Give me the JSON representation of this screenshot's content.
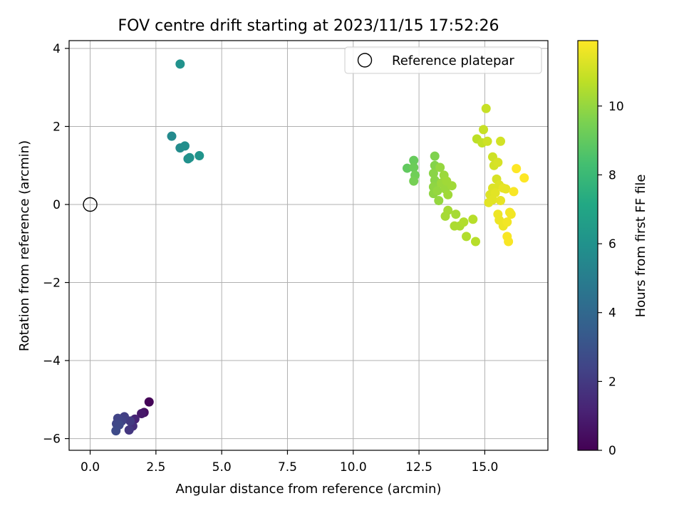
{
  "chart_data": {
    "type": "scatter",
    "title": "FOV centre drift starting at 2023/11/15 17:52:26",
    "xlabel": "Angular distance from reference (arcmin)",
    "ylabel": "Rotation from reference (arcmin)",
    "colorbar_label": "Hours from first FF file",
    "colormap": "viridis",
    "xlim": [
      -0.8,
      17.4
    ],
    "ylim": [
      -6.3,
      4.2
    ],
    "clim": [
      0,
      11.9
    ],
    "xticks": [
      0.0,
      2.5,
      5.0,
      7.5,
      10.0,
      12.5,
      15.0
    ],
    "xtick_labels": [
      "0.0",
      "2.5",
      "5.0",
      "7.5",
      "10.0",
      "12.5",
      "15.0"
    ],
    "yticks": [
      -6,
      -4,
      -2,
      0,
      2,
      4
    ],
    "ytick_labels": [
      "−6",
      "−4",
      "−2",
      "0",
      "2",
      "4"
    ],
    "cbar_ticks": [
      0,
      2,
      4,
      6,
      8,
      10
    ],
    "cbar_tick_labels": [
      "0",
      "2",
      "4",
      "6",
      "8",
      "10"
    ],
    "grid": true,
    "legend": {
      "position": "top-right",
      "entries": [
        "Reference platepar"
      ]
    },
    "reference_point": {
      "x": 0.0,
      "y": 0.0
    },
    "points": [
      {
        "x": 2.24,
        "y": -5.06,
        "h": 0.1
      },
      {
        "x": 2.05,
        "y": -5.33,
        "h": 0.5
      },
      {
        "x": 1.95,
        "y": -5.36,
        "h": 0.8
      },
      {
        "x": 1.7,
        "y": -5.5,
        "h": 1.2
      },
      {
        "x": 1.62,
        "y": -5.68,
        "h": 1.6
      },
      {
        "x": 1.48,
        "y": -5.78,
        "h": 1.9
      },
      {
        "x": 1.52,
        "y": -5.55,
        "h": 2.0
      },
      {
        "x": 1.3,
        "y": -5.44,
        "h": 2.2
      },
      {
        "x": 1.2,
        "y": -5.55,
        "h": 2.3
      },
      {
        "x": 1.05,
        "y": -5.48,
        "h": 2.4
      },
      {
        "x": 1.0,
        "y": -5.62,
        "h": 2.5
      },
      {
        "x": 1.1,
        "y": -5.65,
        "h": 2.6
      },
      {
        "x": 0.98,
        "y": -5.8,
        "h": 2.7
      },
      {
        "x": 3.1,
        "y": 1.75,
        "h": 5.6
      },
      {
        "x": 3.42,
        "y": 1.45,
        "h": 5.7
      },
      {
        "x": 3.6,
        "y": 1.5,
        "h": 5.8
      },
      {
        "x": 3.72,
        "y": 1.17,
        "h": 5.9
      },
      {
        "x": 3.78,
        "y": 1.2,
        "h": 6.0
      },
      {
        "x": 4.15,
        "y": 1.25,
        "h": 6.1
      },
      {
        "x": 3.42,
        "y": 3.6,
        "h": 6.0
      },
      {
        "x": 12.05,
        "y": 0.93,
        "h": 9.0
      },
      {
        "x": 12.3,
        "y": 1.13,
        "h": 9.1
      },
      {
        "x": 12.3,
        "y": 0.95,
        "h": 9.2
      },
      {
        "x": 12.35,
        "y": 0.75,
        "h": 9.3
      },
      {
        "x": 12.3,
        "y": 0.6,
        "h": 9.4
      },
      {
        "x": 13.1,
        "y": 1.24,
        "h": 9.6
      },
      {
        "x": 13.1,
        "y": 1.0,
        "h": 9.7
      },
      {
        "x": 13.05,
        "y": 0.8,
        "h": 9.8
      },
      {
        "x": 13.1,
        "y": 0.62,
        "h": 9.8
      },
      {
        "x": 13.05,
        "y": 0.45,
        "h": 9.9
      },
      {
        "x": 13.05,
        "y": 0.28,
        "h": 9.9
      },
      {
        "x": 13.2,
        "y": 0.35,
        "h": 10.0
      },
      {
        "x": 13.25,
        "y": 0.1,
        "h": 10.0
      },
      {
        "x": 13.3,
        "y": 0.95,
        "h": 10.0
      },
      {
        "x": 13.35,
        "y": 0.55,
        "h": 10.1
      },
      {
        "x": 13.45,
        "y": 0.75,
        "h": 10.1
      },
      {
        "x": 13.5,
        "y": 0.4,
        "h": 10.1
      },
      {
        "x": 13.55,
        "y": 0.6,
        "h": 10.2
      },
      {
        "x": 13.6,
        "y": 0.25,
        "h": 10.2
      },
      {
        "x": 13.75,
        "y": 0.48,
        "h": 10.2
      },
      {
        "x": 13.6,
        "y": -0.15,
        "h": 10.3
      },
      {
        "x": 13.5,
        "y": -0.3,
        "h": 10.3
      },
      {
        "x": 13.9,
        "y": -0.25,
        "h": 10.3
      },
      {
        "x": 13.85,
        "y": -0.55,
        "h": 10.4
      },
      {
        "x": 14.05,
        "y": -0.55,
        "h": 10.4
      },
      {
        "x": 14.2,
        "y": -0.45,
        "h": 10.5
      },
      {
        "x": 14.3,
        "y": -0.82,
        "h": 10.5
      },
      {
        "x": 14.55,
        "y": -0.38,
        "h": 10.6
      },
      {
        "x": 14.65,
        "y": -0.95,
        "h": 10.6
      },
      {
        "x": 14.7,
        "y": 1.68,
        "h": 10.7
      },
      {
        "x": 14.9,
        "y": 1.58,
        "h": 10.8
      },
      {
        "x": 14.95,
        "y": 1.92,
        "h": 10.9
      },
      {
        "x": 15.05,
        "y": 2.46,
        "h": 10.9
      },
      {
        "x": 15.1,
        "y": 1.62,
        "h": 11.0
      },
      {
        "x": 15.3,
        "y": 1.22,
        "h": 11.0
      },
      {
        "x": 15.35,
        "y": 1.0,
        "h": 11.1
      },
      {
        "x": 15.5,
        "y": 1.08,
        "h": 11.2
      },
      {
        "x": 15.6,
        "y": 1.62,
        "h": 11.1
      },
      {
        "x": 15.45,
        "y": 0.65,
        "h": 11.2
      },
      {
        "x": 15.55,
        "y": 0.5,
        "h": 11.3
      },
      {
        "x": 15.3,
        "y": 0.42,
        "h": 11.3
      },
      {
        "x": 15.2,
        "y": 0.25,
        "h": 11.3
      },
      {
        "x": 15.4,
        "y": 0.3,
        "h": 11.4
      },
      {
        "x": 15.3,
        "y": 0.12,
        "h": 11.4
      },
      {
        "x": 15.15,
        "y": 0.05,
        "h": 11.4
      },
      {
        "x": 15.6,
        "y": 0.1,
        "h": 11.5
      },
      {
        "x": 15.7,
        "y": 0.42,
        "h": 11.5
      },
      {
        "x": 15.8,
        "y": 0.4,
        "h": 11.5
      },
      {
        "x": 15.5,
        "y": -0.25,
        "h": 11.6
      },
      {
        "x": 15.55,
        "y": -0.4,
        "h": 11.6
      },
      {
        "x": 15.7,
        "y": -0.55,
        "h": 11.6
      },
      {
        "x": 15.85,
        "y": -0.45,
        "h": 11.7
      },
      {
        "x": 15.95,
        "y": -0.2,
        "h": 11.7
      },
      {
        "x": 16.0,
        "y": -0.25,
        "h": 11.7
      },
      {
        "x": 15.85,
        "y": -0.82,
        "h": 11.8
      },
      {
        "x": 15.9,
        "y": -0.95,
        "h": 11.8
      },
      {
        "x": 16.1,
        "y": 0.33,
        "h": 11.8
      },
      {
        "x": 16.2,
        "y": 0.92,
        "h": 11.9
      },
      {
        "x": 16.5,
        "y": 0.68,
        "h": 11.9
      }
    ]
  }
}
